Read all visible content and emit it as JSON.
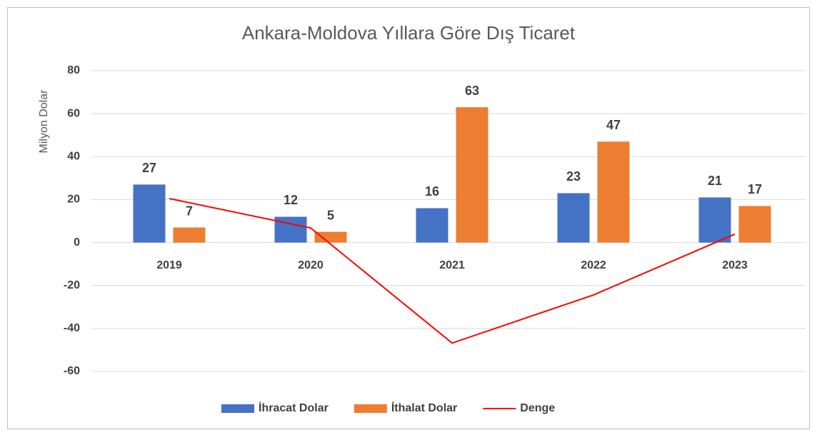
{
  "chart_data": {
    "type": "bar",
    "title": "Ankara-Moldova Yıllara Göre Dış Ticaret",
    "y_label": "Milyon Dolar",
    "categories": [
      "2019",
      "2020",
      "2021",
      "2022",
      "2023"
    ],
    "series": [
      {
        "name": "İhracat Dolar",
        "color": "#4472c4",
        "type": "bar",
        "values": [
          27,
          12,
          16,
          23,
          21
        ]
      },
      {
        "name": "İthalat Dolar",
        "color": "#ed7d31",
        "type": "bar",
        "values": [
          7,
          5,
          63,
          47,
          17
        ]
      },
      {
        "name": "Denge",
        "color": "#ff0000",
        "type": "line",
        "values": [
          20.5,
          6.8,
          -46.8,
          -24.4,
          3.9
        ]
      }
    ],
    "ylim": [
      -60,
      80
    ],
    "yticks": [
      -60,
      -40,
      -20,
      0,
      20,
      40,
      60,
      80
    ],
    "grid": true,
    "legend": "bottom"
  }
}
